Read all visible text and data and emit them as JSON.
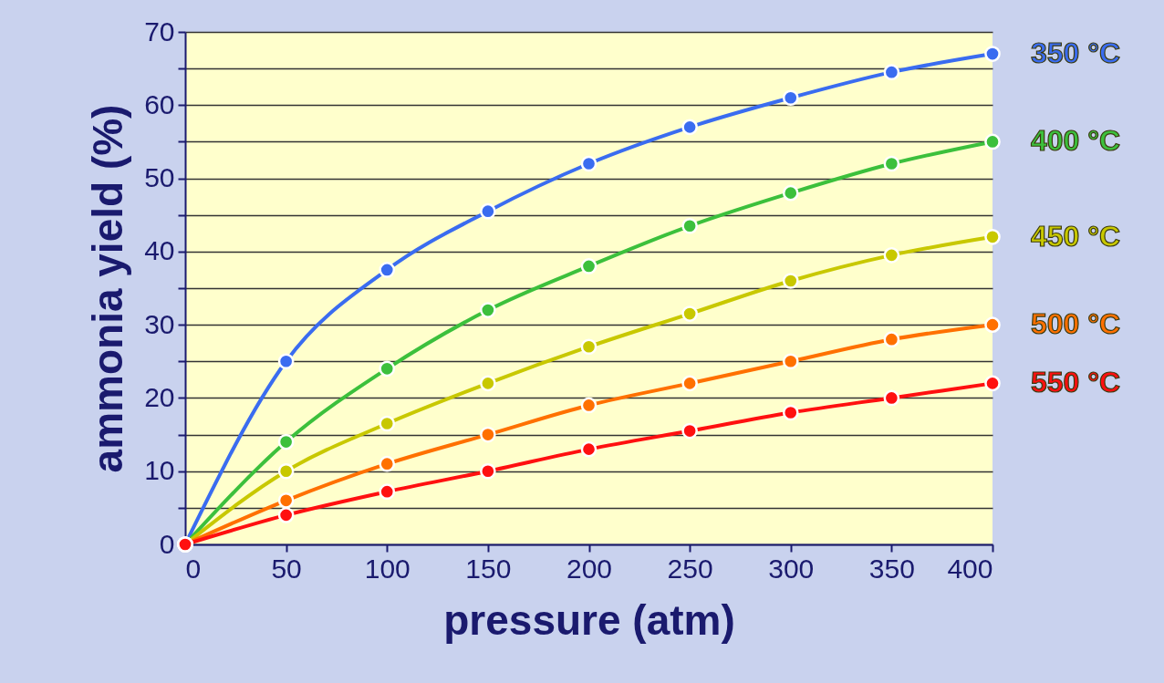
{
  "chart_data": {
    "type": "line",
    "xlabel": "pressure (atm)",
    "ylabel": "ammonia yield (%)",
    "x": [
      0,
      50,
      100,
      150,
      200,
      250,
      300,
      350,
      400
    ],
    "series": [
      {
        "name": "350 °C",
        "color": "#3a6cf0",
        "values": [
          0,
          25,
          37.5,
          45.5,
          52,
          57,
          61,
          64.5,
          67
        ]
      },
      {
        "name": "400 °C",
        "color": "#3cc03c",
        "values": [
          0,
          14,
          24,
          32,
          38,
          43.5,
          48,
          52,
          55
        ]
      },
      {
        "name": "450 °C",
        "color": "#c8c800",
        "values": [
          0,
          10,
          16.5,
          22,
          27,
          31.5,
          36,
          39.5,
          42
        ]
      },
      {
        "name": "500 °C",
        "color": "#ff7000",
        "values": [
          0,
          6,
          11,
          15,
          19,
          22,
          25,
          28,
          30
        ]
      },
      {
        "name": "550 °C",
        "color": "#ff1010",
        "values": [
          0,
          4,
          7.2,
          10,
          13,
          15.5,
          18,
          20,
          22
        ]
      }
    ],
    "xlim": [
      0,
      400
    ],
    "xticks": [
      0,
      50,
      100,
      150,
      200,
      250,
      300,
      350,
      400
    ],
    "ylim": [
      0,
      70
    ],
    "yticks": [
      0,
      {
        "value": 5,
        "label": null
      },
      10,
      {
        "value": 15,
        "label": null
      },
      20,
      {
        "value": 25,
        "label": null
      },
      30,
      {
        "value": 35,
        "label": null
      },
      40,
      {
        "value": 45,
        "label": null
      },
      50,
      {
        "value": 55,
        "label": null
      },
      60,
      {
        "value": 65,
        "label": null
      },
      70
    ],
    "grid": "y",
    "legend": false,
    "marker": "circle",
    "line_style": "solid"
  }
}
